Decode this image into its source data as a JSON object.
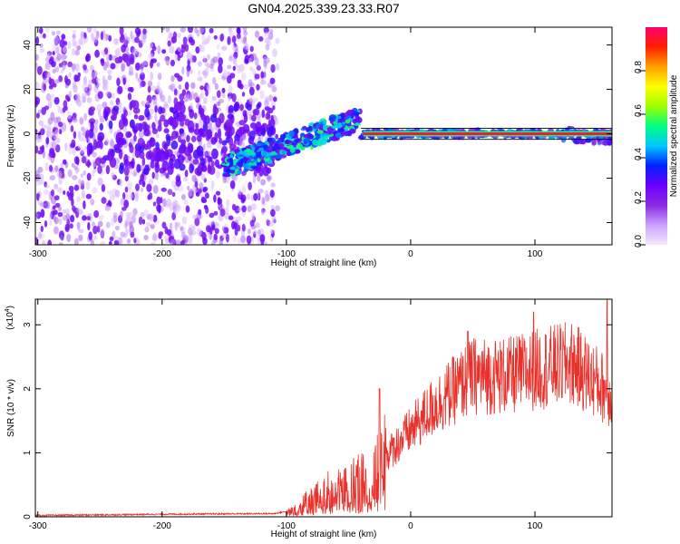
{
  "title": "GN04.2025.339.23.33.R07",
  "chart_data": [
    {
      "type": "heatmap",
      "name": "spectrogram",
      "xlabel": "Height of straight line (km)",
      "ylabel": "Frequency (Hz)",
      "xlim": [
        -302,
        162
      ],
      "ylim": [
        -50,
        48
      ],
      "xticks": [
        -300,
        -200,
        -100,
        0,
        100
      ],
      "xtick_labels": [
        "-300",
        "-200",
        "-100",
        "0",
        "100"
      ],
      "yticks": [
        -40,
        -20,
        0,
        20,
        40
      ],
      "ytick_labels": [
        "-40",
        "-20",
        "0",
        "20",
        "40"
      ],
      "colorbar": {
        "label": "Normalized spectral amplitude",
        "range": [
          0,
          1
        ],
        "ticks": [
          0.0,
          0.2,
          0.4,
          0.6,
          0.8
        ],
        "tick_labels": [
          "0.0",
          "0.2",
          "0.4",
          "0.6",
          "0.8"
        ],
        "colormap": [
          "#f7e8ff",
          "#c9a2ff",
          "#8a2be2",
          "#6a00ff",
          "#0020ff",
          "#00c8ff",
          "#00ff80",
          "#a0ff00",
          "#ffff00",
          "#ffa000",
          "#ff2000",
          "#ff0070"
        ]
      },
      "regions": [
        {
          "desc": "diffuse noise",
          "x_range": [
            -302,
            -107
          ],
          "freq_range": [
            -50,
            48
          ],
          "amplitude": 0.05
        },
        {
          "desc": "rising signal",
          "x_range": [
            -150,
            -40
          ],
          "freq_range": [
            -20,
            12
          ],
          "amplitude": 0.35
        },
        {
          "desc": "steady carrier",
          "x_range": [
            -40,
            162
          ],
          "freq_center": 0,
          "amplitude": 0.95
        }
      ]
    },
    {
      "type": "line",
      "name": "snr",
      "xlabel": "Height of straight line (km)",
      "ylabel": "SNR (10 * v/v)",
      "y_multiplier": "(x10",
      "y_multiplier_exp": "4",
      "xlim": [
        -302,
        162
      ],
      "ylim": [
        0,
        3.4
      ],
      "xticks": [
        -300,
        -200,
        -100,
        0,
        100
      ],
      "xtick_labels": [
        "-300",
        "-200",
        "-100",
        "0",
        "100"
      ],
      "yticks": [
        0,
        1,
        2,
        3
      ],
      "ytick_labels": [
        "0",
        "1",
        "2",
        "3"
      ],
      "color": "#e8312a",
      "trend": {
        "x": [
          -302,
          -200,
          -110,
          -95,
          -70,
          -50,
          -30,
          -20,
          0,
          20,
          50,
          80,
          100,
          130,
          150,
          162
        ],
        "y": [
          0.02,
          0.04,
          0.05,
          0.1,
          0.35,
          0.5,
          0.55,
          0.95,
          1.35,
          1.75,
          2.2,
          2.2,
          2.3,
          2.4,
          2.1,
          1.9
        ]
      },
      "peaks": [
        {
          "x": -25,
          "y": 2.0
        },
        {
          "x": 46,
          "y": 2.9
        },
        {
          "x": 99,
          "y": 3.2
        },
        {
          "x": 158,
          "y": 3.45
        }
      ]
    }
  ]
}
